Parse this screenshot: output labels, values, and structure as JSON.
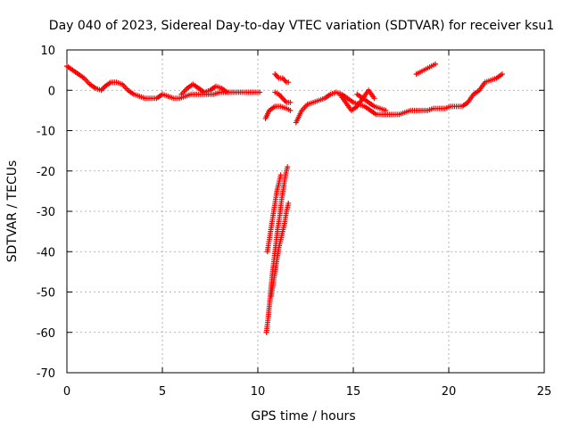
{
  "chart_data": {
    "type": "scatter",
    "title": "Day 040 of 2023, Sidereal Day-to-day VTEC variation (SDTVAR) for receiver ksu1",
    "xlabel": "GPS time / hours",
    "ylabel": "SDTVAR / TECUs",
    "xlim": [
      0,
      25
    ],
    "ylim": [
      -70,
      10
    ],
    "xticks": [
      0,
      5,
      10,
      15,
      20,
      25
    ],
    "xtick_labels": [
      "0",
      "5",
      "10",
      "15",
      "20",
      "25"
    ],
    "yticks": [
      10,
      0,
      -10,
      -20,
      -30,
      -40,
      -50,
      -60,
      -70
    ],
    "ytick_labels": [
      "10",
      "0",
      "-10",
      "-20",
      "-30",
      "-40",
      "-50",
      "-60",
      "-70"
    ],
    "grid": true,
    "marker": "+",
    "color": "#ff0000",
    "series": [
      {
        "name": "main-trace-0-10h",
        "x": [
          0.0,
          0.3,
          0.6,
          0.9,
          1.2,
          1.5,
          1.8,
          2.0,
          2.3,
          2.6,
          2.9,
          3.2,
          3.5,
          3.8,
          4.1,
          4.4,
          4.7,
          5.0,
          5.3,
          5.6,
          5.9,
          6.2,
          6.5,
          6.8,
          7.1,
          7.4,
          7.7,
          8.0,
          8.3,
          8.6,
          8.9,
          9.2,
          9.5,
          9.8,
          10.1
        ],
        "y": [
          6.0,
          5.0,
          4.0,
          3.0,
          1.5,
          0.5,
          0.0,
          1.0,
          2.0,
          2.0,
          1.5,
          0.0,
          -1.0,
          -1.5,
          -2.0,
          -2.0,
          -2.0,
          -1.0,
          -1.5,
          -2.0,
          -2.0,
          -1.5,
          -1.0,
          -1.0,
          -1.0,
          -1.0,
          -1.0,
          -0.5,
          -0.5,
          -0.5,
          -0.5,
          -0.5,
          -0.5,
          -0.5,
          -0.5
        ]
      },
      {
        "name": "dip-track-a",
        "x": [
          10.45,
          10.55,
          10.65,
          10.75,
          10.85,
          10.95,
          11.05,
          11.15,
          11.25,
          11.35,
          11.45,
          11.55
        ],
        "y": [
          -60.0,
          -56.0,
          -51.0,
          -46.0,
          -42.0,
          -38.0,
          -34.0,
          -31.0,
          -27.0,
          -24.0,
          -21.0,
          -19.0
        ]
      },
      {
        "name": "dip-track-b",
        "x": [
          10.5,
          10.6,
          10.7,
          10.8,
          10.9,
          11.0,
          11.1,
          11.2
        ],
        "y": [
          -40.0,
          -37.0,
          -34.0,
          -31.0,
          -28.0,
          -25.0,
          -23.0,
          -21.0
        ]
      },
      {
        "name": "dip-track-c",
        "x": [
          10.7,
          10.8,
          10.9,
          11.0,
          11.1,
          11.2,
          11.3,
          11.4,
          11.5,
          11.6
        ],
        "y": [
          -51.0,
          -48.0,
          -45.0,
          -42.0,
          -39.0,
          -37.0,
          -35.0,
          -33.0,
          -30.0,
          -28.0
        ]
      },
      {
        "name": "segment-near-11h-upper",
        "x": [
          10.9,
          11.1,
          11.3,
          11.5,
          11.6
        ],
        "y": [
          4.0,
          3.0,
          3.0,
          2.0,
          2.0
        ]
      },
      {
        "name": "segment-near-11h-mid",
        "x": [
          10.9,
          11.1,
          11.3,
          11.5,
          11.7
        ],
        "y": [
          -0.5,
          -1.0,
          -2.0,
          -3.0,
          -3.0
        ]
      },
      {
        "name": "segment-near-11h-low",
        "x": [
          10.4,
          10.6,
          10.9,
          11.2,
          11.5,
          11.7
        ],
        "y": [
          -7.0,
          -5.0,
          -4.0,
          -4.0,
          -4.5,
          -5.0
        ]
      },
      {
        "name": "main-trace-12-23h",
        "x": [
          12.0,
          12.3,
          12.6,
          12.9,
          13.2,
          13.5,
          13.8,
          14.1,
          14.4,
          14.7,
          15.0,
          15.3,
          15.6,
          15.9,
          16.2,
          16.5,
          16.8,
          17.1,
          17.4,
          17.7,
          18.0,
          18.3,
          18.6,
          18.9,
          19.2,
          19.5,
          19.8,
          20.1,
          20.4,
          20.7,
          21.0,
          21.3,
          21.6,
          21.9,
          22.2,
          22.5,
          22.8
        ],
        "y": [
          -8.0,
          -5.0,
          -3.5,
          -3.0,
          -2.5,
          -2.0,
          -1.0,
          -0.5,
          -1.0,
          -2.0,
          -3.0,
          -3.5,
          -4.0,
          -5.0,
          -6.0,
          -6.0,
          -6.0,
          -6.0,
          -6.0,
          -5.5,
          -5.0,
          -5.0,
          -5.0,
          -5.0,
          -4.5,
          -4.5,
          -4.5,
          -4.0,
          -4.0,
          -4.0,
          -3.0,
          -1.0,
          0.0,
          2.0,
          2.5,
          3.0,
          4.0
        ]
      },
      {
        "name": "segment-14h-dip",
        "x": [
          14.3,
          14.6,
          14.9,
          15.2,
          15.5,
          15.8,
          16.1
        ],
        "y": [
          -1.0,
          -3.0,
          -5.0,
          -4.0,
          -2.0,
          0.0,
          -2.0
        ]
      },
      {
        "name": "segment-15-16h",
        "x": [
          15.2,
          15.5,
          15.8,
          16.1,
          16.4,
          16.7
        ],
        "y": [
          -1.0,
          -2.0,
          -3.0,
          -4.0,
          -4.5,
          -5.0
        ]
      },
      {
        "name": "segment-6-8h-hump",
        "x": [
          6.0,
          6.3,
          6.6,
          6.9,
          7.2,
          7.5,
          7.8,
          8.1,
          8.4
        ],
        "y": [
          -1.0,
          0.5,
          1.5,
          0.5,
          -0.5,
          0.0,
          1.0,
          0.5,
          -0.5
        ]
      },
      {
        "name": "segment-18-19h",
        "x": [
          18.3,
          18.5,
          18.7,
          18.9,
          19.1,
          19.3
        ],
        "y": [
          4.0,
          4.5,
          5.0,
          5.5,
          6.0,
          6.5
        ]
      }
    ]
  }
}
